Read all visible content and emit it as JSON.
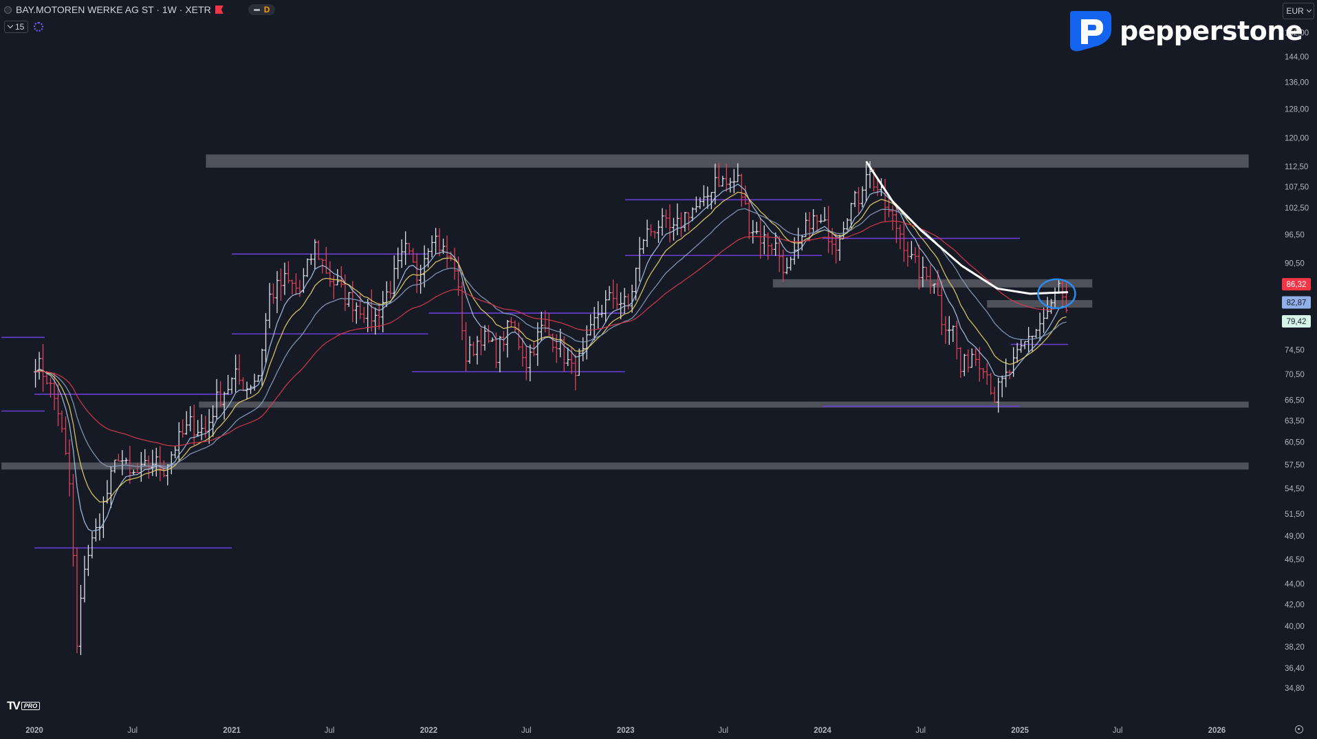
{
  "header": {
    "symbol": "BAY.MOTOREN WERKE AG ST · 1W · XETR",
    "market_status": "D",
    "indicators_count": "15"
  },
  "brand": {
    "name": "pepperstone"
  },
  "currency": "EUR",
  "colors": {
    "background": "#161a25",
    "candle_up": "#e1e3ea",
    "candle_down": "#e0435a",
    "zone": "#808286",
    "level": "#6a3fd8",
    "ma_fast": "#a9c5e8",
    "ma_mid": "#e8d36a",
    "ma_slow_blue": "#8aa0c0",
    "ma_slow_red": "#d83a4c",
    "trendline": "#ffffff",
    "highlight_circle": "#2a8cf0"
  },
  "chart_data": {
    "type": "candlestick",
    "timeframe": "1W",
    "log_scale": true,
    "x_range": [
      "2020-01-01",
      "2026-03-01"
    ],
    "x_ticks": [
      "2020",
      "Jul",
      "2021",
      "Jul",
      "2022",
      "Jul",
      "2023",
      "Jul",
      "2024",
      "Jul",
      "2025",
      "Jul",
      "2026"
    ],
    "y_ticks": [
      "152,00",
      "144,00",
      "136,00",
      "128,00",
      "120,00",
      "112,50",
      "107,50",
      "102,50",
      "96,50",
      "90,50",
      "74,50",
      "70,50",
      "66,50",
      "63,50",
      "60,50",
      "57,50",
      "54,50",
      "51,50",
      "49,00",
      "46,50",
      "44,00",
      "42,00",
      "40,00",
      "38,20",
      "36,40",
      "34,80"
    ],
    "price_labels": [
      {
        "value": 86.32,
        "text": "86,32",
        "color": "#f23645",
        "text_color": "#ffffff"
      },
      {
        "value": 82.87,
        "text": "82,87",
        "color": "#8fb0e8",
        "text_color": "#161a25"
      },
      {
        "value": 79.42,
        "text": "79,42",
        "color": "#d6f5e9",
        "text_color": "#161a25"
      }
    ],
    "anchors": [
      [
        "2020-01-03",
        72.5
      ],
      [
        "2020-01-24",
        70.0
      ],
      [
        "2020-02-14",
        65.0
      ],
      [
        "2020-03-06",
        55.0
      ],
      [
        "2020-03-20",
        38.0
      ],
      [
        "2020-04-03",
        46.0
      ],
      [
        "2020-04-24",
        49.5
      ],
      [
        "2020-05-15",
        54.0
      ],
      [
        "2020-06-05",
        59.0
      ],
      [
        "2020-06-26",
        56.0
      ],
      [
        "2020-07-17",
        56.5
      ],
      [
        "2020-08-07",
        58.0
      ],
      [
        "2020-08-28",
        57.0
      ],
      [
        "2020-09-18",
        60.0
      ],
      [
        "2020-10-16",
        63.0
      ],
      [
        "2020-11-13",
        62.0
      ],
      [
        "2020-12-04",
        66.5
      ],
      [
        "2021-01-08",
        70.0
      ],
      [
        "2021-01-29",
        68.5
      ],
      [
        "2021-02-19",
        70.5
      ],
      [
        "2021-03-12",
        84.0
      ],
      [
        "2021-04-09",
        87.0
      ],
      [
        "2021-05-07",
        85.0
      ],
      [
        "2021-06-04",
        94.0
      ],
      [
        "2021-07-02",
        87.5
      ],
      [
        "2021-07-30",
        84.0
      ],
      [
        "2021-08-27",
        82.0
      ],
      [
        "2021-09-24",
        80.0
      ],
      [
        "2021-10-22",
        86.0
      ],
      [
        "2021-11-19",
        93.0
      ],
      [
        "2021-12-10",
        88.0
      ],
      [
        "2022-01-07",
        97.0
      ],
      [
        "2022-01-28",
        93.0
      ],
      [
        "2022-02-18",
        90.0
      ],
      [
        "2022-03-11",
        73.0
      ],
      [
        "2022-04-08",
        77.0
      ],
      [
        "2022-05-06",
        74.0
      ],
      [
        "2022-06-03",
        79.0
      ],
      [
        "2022-07-01",
        72.5
      ],
      [
        "2022-07-29",
        78.0
      ],
      [
        "2022-08-26",
        76.0
      ],
      [
        "2022-09-23",
        71.0
      ],
      [
        "2022-10-14",
        73.5
      ],
      [
        "2022-11-11",
        81.0
      ],
      [
        "2022-12-09",
        84.0
      ],
      [
        "2023-01-06",
        82.0
      ],
      [
        "2023-02-03",
        96.0
      ],
      [
        "2023-03-03",
        99.0
      ],
      [
        "2023-03-31",
        97.0
      ],
      [
        "2023-04-28",
        102.0
      ],
      [
        "2023-05-26",
        103.0
      ],
      [
        "2023-06-16",
        110.0
      ],
      [
        "2023-07-07",
        108.0
      ],
      [
        "2023-07-28",
        109.0
      ],
      [
        "2023-08-18",
        99.0
      ],
      [
        "2023-09-08",
        96.0
      ],
      [
        "2023-10-06",
        94.0
      ],
      [
        "2023-10-27",
        88.5
      ],
      [
        "2023-11-17",
        93.0
      ],
      [
        "2023-12-08",
        100.0
      ],
      [
        "2024-01-05",
        98.0
      ],
      [
        "2024-01-26",
        95.0
      ],
      [
        "2024-02-16",
        102.0
      ],
      [
        "2024-03-08",
        105.0
      ],
      [
        "2024-03-22",
        112.0
      ],
      [
        "2024-04-12",
        107.0
      ],
      [
        "2024-05-03",
        101.0
      ],
      [
        "2024-05-24",
        97.0
      ],
      [
        "2024-06-14",
        91.0
      ],
      [
        "2024-07-05",
        88.0
      ],
      [
        "2024-07-26",
        87.5
      ],
      [
        "2024-08-09",
        80.0
      ],
      [
        "2024-08-30",
        78.0
      ],
      [
        "2024-09-13",
        71.0
      ],
      [
        "2024-10-04",
        74.0
      ],
      [
        "2024-10-25",
        72.5
      ],
      [
        "2024-11-15",
        67.0
      ],
      [
        "2024-12-06",
        70.0
      ],
      [
        "2024-12-27",
        73.0
      ],
      [
        "2025-01-17",
        76.5
      ],
      [
        "2025-02-07",
        79.0
      ],
      [
        "2025-02-28",
        82.0
      ],
      [
        "2025-03-14",
        86.0
      ],
      [
        "2025-03-28",
        80.0
      ]
    ],
    "zones": [
      {
        "y": [
          112.2,
          115.6
        ],
        "x": [
          "2020-11-14",
          "2026-03-01"
        ]
      },
      {
        "y": [
          85.7,
          87.3
        ],
        "x": [
          "2023-10-01",
          "2025-05-15"
        ]
      },
      {
        "y": [
          81.9,
          83.3
        ],
        "x": [
          "2024-11-01",
          "2025-05-15"
        ]
      },
      {
        "y": [
          65.4,
          66.3
        ],
        "x": [
          "2020-11-01",
          "2026-03-01"
        ]
      },
      {
        "y": [
          56.9,
          57.8
        ],
        "x": [
          "2019-11-01",
          "2026-03-01"
        ]
      }
    ],
    "levels": [
      {
        "y": 76.6,
        "x": [
          "2019-11-01",
          "2020-01-20"
        ]
      },
      {
        "y": 64.9,
        "x": [
          "2019-11-01",
          "2020-01-20"
        ]
      },
      {
        "y": 67.4,
        "x": [
          "2020-01-01",
          "2021-01-01"
        ]
      },
      {
        "y": 47.7,
        "x": [
          "2020-01-01",
          "2021-01-01"
        ]
      },
      {
        "y": 92.4,
        "x": [
          "2021-01-01",
          "2021-12-31"
        ]
      },
      {
        "y": 77.2,
        "x": [
          "2021-01-01",
          "2021-12-31"
        ]
      },
      {
        "y": 80.9,
        "x": [
          "2022-01-01",
          "2022-12-31"
        ]
      },
      {
        "y": 70.9,
        "x": [
          "2021-12-01",
          "2022-12-31"
        ]
      },
      {
        "y": 104.4,
        "x": [
          "2022-12-31",
          "2023-12-31"
        ]
      },
      {
        "y": 92.1,
        "x": [
          "2022-12-31",
          "2023-12-31"
        ]
      },
      {
        "y": 95.7,
        "x": [
          "2024-01-01",
          "2025-01-01"
        ]
      },
      {
        "y": 65.6,
        "x": [
          "2024-01-01",
          "2025-01-01"
        ]
      },
      {
        "y": 75.4,
        "x": [
          "2024-12-15",
          "2025-03-31"
        ]
      }
    ],
    "trendline": [
      [
        "2024-03-22",
        113.8
      ],
      [
        "2024-05-10",
        104.0
      ],
      [
        "2024-07-01",
        97.5
      ],
      [
        "2024-09-15",
        90.0
      ],
      [
        "2024-11-20",
        85.5
      ],
      [
        "2025-01-20",
        84.5
      ],
      [
        "2025-03-31",
        84.8
      ]
    ],
    "highlight": {
      "date": "2025-03-10",
      "price": 84.5
    }
  }
}
